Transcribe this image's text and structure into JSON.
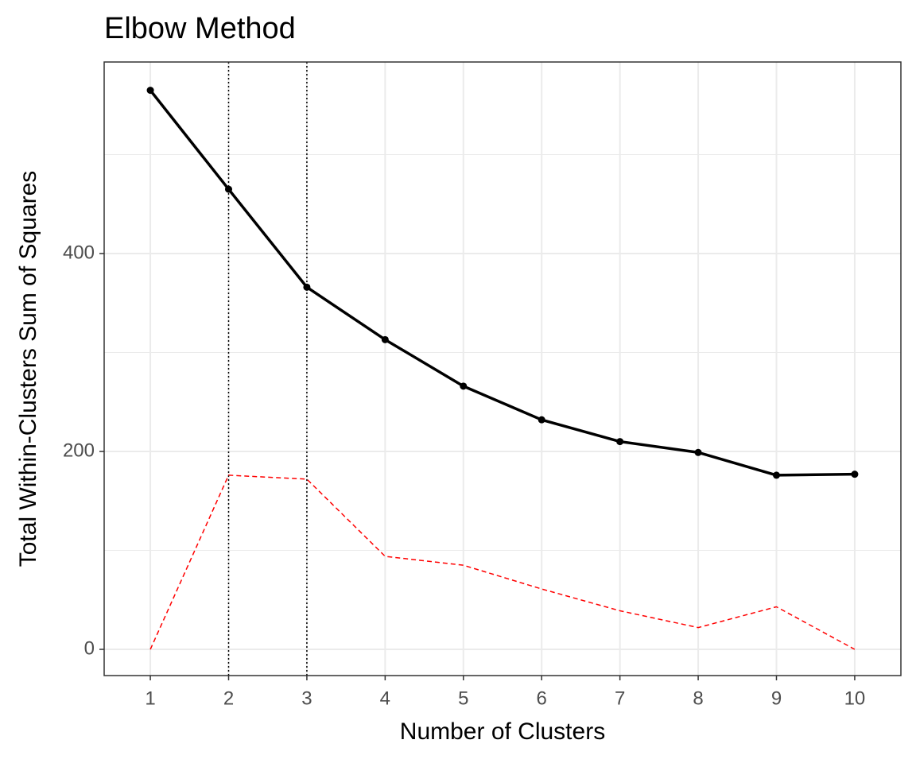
{
  "chart_data": {
    "type": "line",
    "title": "Elbow Method",
    "x_label": "Number of Clusters",
    "y_label": "Total Within-Clusters Sum of Squares",
    "x": [
      1,
      2,
      3,
      4,
      5,
      6,
      7,
      8,
      9,
      10
    ],
    "series": [
      {
        "color": "#000000",
        "line_style": "solid",
        "markers": true,
        "values": [
          565,
          465,
          366,
          313,
          266,
          232,
          210,
          199,
          176,
          177
        ]
      },
      {
        "color": "#ff0000",
        "line_style": "dashed",
        "markers": false,
        "values": [
          0,
          176,
          172,
          94,
          85,
          61,
          39,
          22,
          43,
          0
        ]
      }
    ],
    "vlines": [
      2,
      3
    ],
    "xlim": [
      0.41,
      10.59
    ],
    "ylim": [
      -26.5,
      593.6
    ],
    "xticks": [
      1,
      2,
      3,
      4,
      5,
      6,
      7,
      8,
      9,
      10
    ],
    "yticks": [
      0,
      200,
      400
    ],
    "y_minor_grid": [
      100,
      300,
      500
    ],
    "grid": true
  }
}
